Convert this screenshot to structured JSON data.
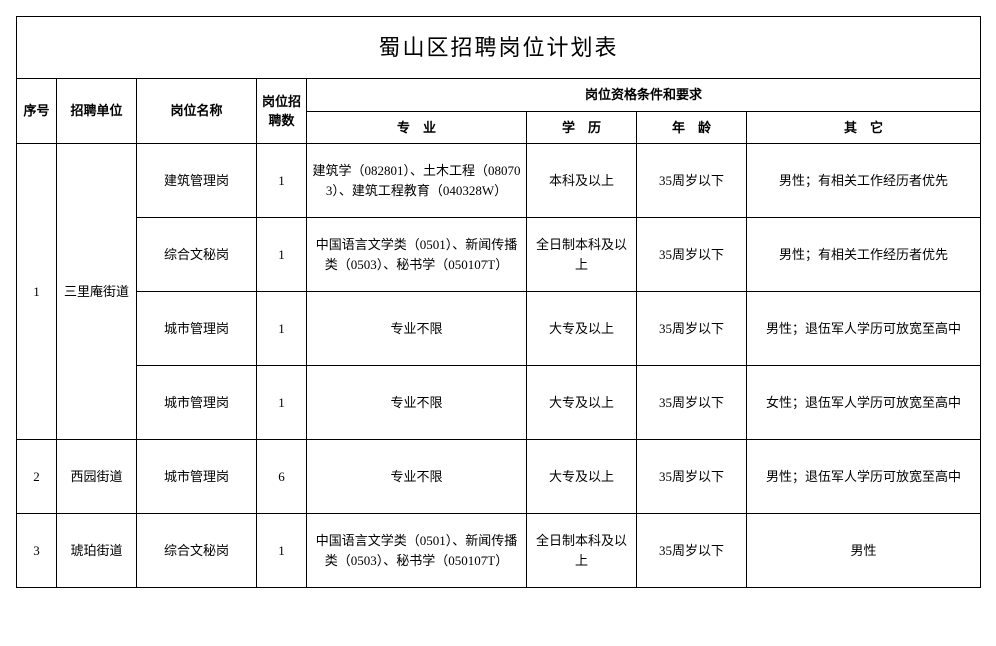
{
  "title": "蜀山区招聘岗位计划表",
  "columns": {
    "seq": "序号",
    "unit": "招聘单位",
    "position": "岗位名称",
    "count": "岗位招聘数",
    "req_group": "岗位资格条件和要求",
    "major": "专　业",
    "edu": "学　历",
    "age": "年　龄",
    "other": "其　它"
  },
  "rows": [
    {
      "seq": "1",
      "unit": "三里庵街道",
      "position": "建筑管理岗",
      "count": "1",
      "major": "建筑学（082801）、土木工程（080703）、建筑工程教育（040328W）",
      "edu": "本科及以上",
      "age": "35周岁以下",
      "other": "男性；有相关工作经历者优先"
    },
    {
      "position": "综合文秘岗",
      "count": "1",
      "major": "中国语言文学类（0501）、新闻传播类（0503）、秘书学（050107T）",
      "edu": "全日制本科及以上",
      "age": "35周岁以下",
      "other": "男性；有相关工作经历者优先"
    },
    {
      "position": "城市管理岗",
      "count": "1",
      "major": "专业不限",
      "edu": "大专及以上",
      "age": "35周岁以下",
      "other": "男性；退伍军人学历可放宽至高中"
    },
    {
      "position": "城市管理岗",
      "count": "1",
      "major": "专业不限",
      "edu": "大专及以上",
      "age": "35周岁以下",
      "other": "女性；退伍军人学历可放宽至高中"
    },
    {
      "seq": "2",
      "unit": "西园街道",
      "position": "城市管理岗",
      "count": "6",
      "major": "专业不限",
      "edu": "大专及以上",
      "age": "35周岁以下",
      "other": "男性；退伍军人学历可放宽至高中"
    },
    {
      "seq": "3",
      "unit": "琥珀街道",
      "position": "综合文秘岗",
      "count": "1",
      "major": "中国语言文学类（0501）、新闻传播类（0503）、秘书学（050107T）",
      "edu": "全日制本科及以上",
      "age": "35周岁以下",
      "other": "男性"
    }
  ]
}
